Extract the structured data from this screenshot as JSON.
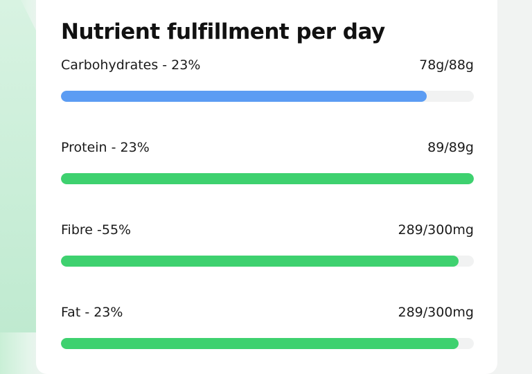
{
  "title": "Nutrient fulfillment per day",
  "items": [
    {
      "name": "Carbohydrates - 23%",
      "value": 78,
      "max": 88,
      "value_label": "78g/88g",
      "color": "#5b9cf3"
    },
    {
      "name": "Protein - 23%",
      "value": 89,
      "max": 89,
      "value_label": "89/89g",
      "color": "#3ed16f"
    },
    {
      "name": "Fibre -55%",
      "value": 289,
      "max": 300,
      "value_label": "289/300mg",
      "color": "#3ed16f"
    },
    {
      "name": "Fat - 23%",
      "value": 289,
      "max": 300,
      "value_label": "289/300mg",
      "color": "#3ed16f"
    }
  ]
}
